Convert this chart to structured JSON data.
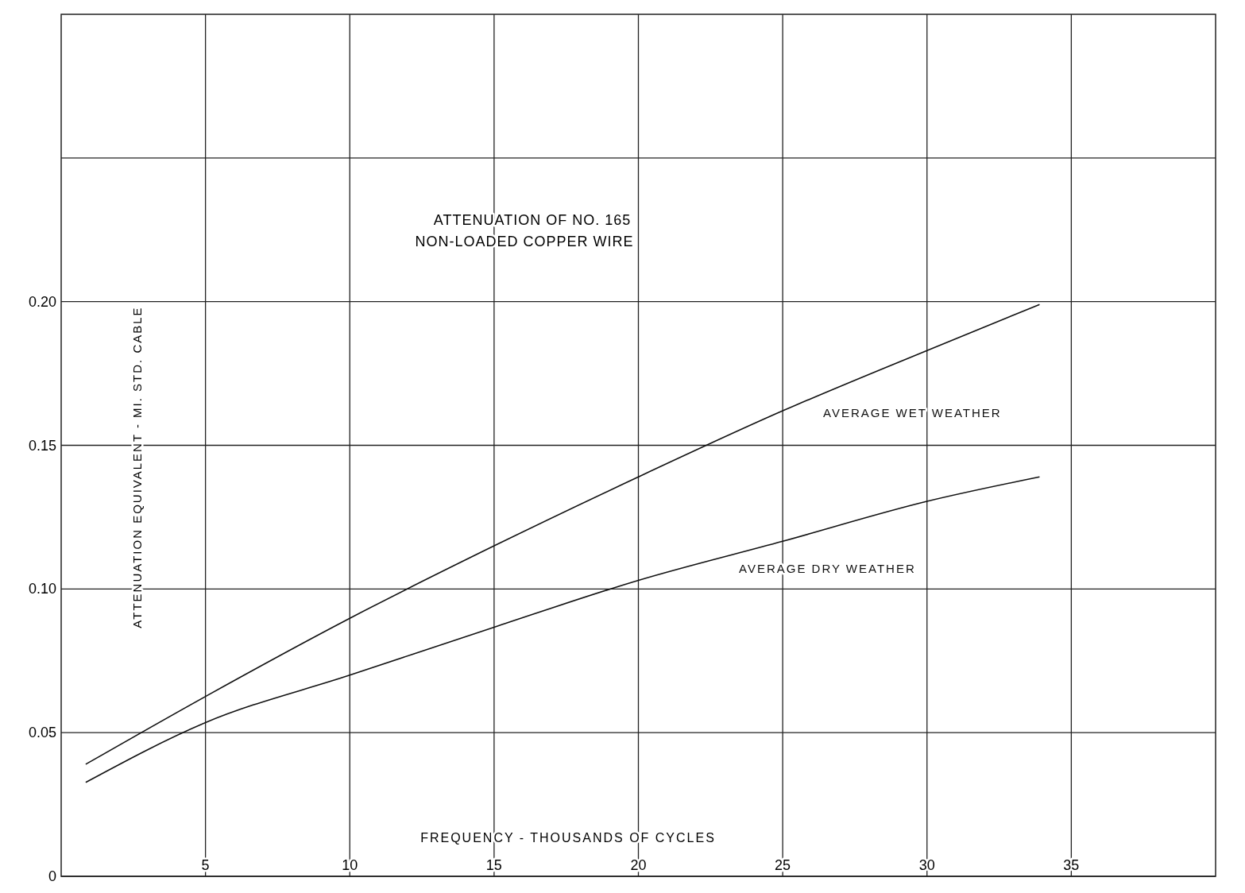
{
  "chart_data": {
    "type": "line",
    "title": "ATTENUATION OF NO. 165",
    "subtitle": "NON-LOADED COPPER WIRE",
    "xlabel": "FREQUENCY - THOUSANDS OF CYCLES",
    "ylabel": "ATTENUATION EQUIVALENT - MI. STD. CABLE",
    "x": [
      0.85,
      5,
      10,
      15,
      20,
      25,
      30,
      33.9
    ],
    "series": [
      {
        "name": "AVERAGE WET WEATHER",
        "color": "#111111",
        "values": [
          0.039,
          0.0626,
          0.0898,
          0.115,
          0.139,
          0.162,
          0.183,
          0.199
        ]
      },
      {
        "name": "AVERAGE DRY WEATHER",
        "color": "#111111",
        "values": [
          0.0327,
          0.0535,
          0.07,
          0.0867,
          0.103,
          0.1166,
          0.1305,
          0.139
        ]
      }
    ],
    "xlim": [
      0,
      40
    ],
    "ylim": [
      0,
      0.3
    ],
    "xticks": [
      5,
      10,
      15,
      20,
      25,
      30,
      35
    ],
    "yticks": [
      0,
      {
        "value": 0.05,
        "label": "0.05"
      },
      {
        "value": 0.1,
        "label": "0.10"
      },
      {
        "value": 0.15,
        "label": "0.15"
      },
      {
        "value": 0.2,
        "label": "0.20"
      },
      {
        "value": 0.25,
        "label": null
      }
    ],
    "grid": true,
    "marker": "none",
    "line_style": "solid"
  }
}
